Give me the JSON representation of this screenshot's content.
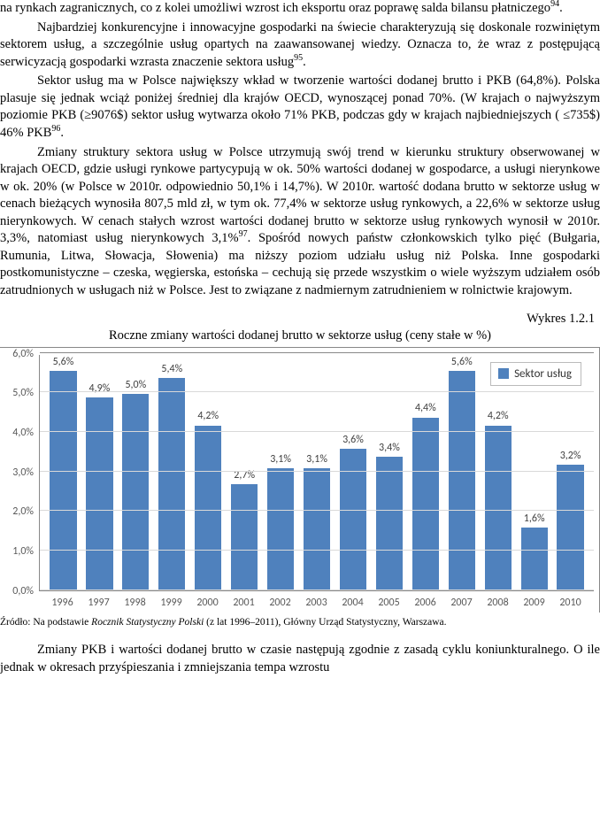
{
  "para1": {
    "pre": "na rynkach zagranicznych, co z kolei umożliwi wzrost ich eksportu oraz poprawę salda bilansu płatniczego",
    "fn": "94",
    "post": "."
  },
  "para2": {
    "pre": "Najbardziej konkurencyjne i innowacyjne gospodarki na świecie charakteryzują się doskonale rozwiniętym sektorem usług, a szczególnie usług opartych na zaawansowanej wiedzy. Oznacza to, że wraz z postępującą serwicyzacją gospodarki wzrasta znaczenie sektora usług",
    "fn": "95",
    "post": "."
  },
  "para3": {
    "pre": "Sektor usług ma w Polsce największy wkład w tworzenie wartości dodanej brutto i PKB (64,8%). Polska plasuje się jednak wciąż poniżej średniej dla krajów OECD, wynoszącej ponad 70%. (W krajach o najwyższym poziomie PKB (≥9076$) sektor usług wytwarza około 71% PKB, podczas gdy w krajach najbiedniejszych ( ≤735$) 46% PKB",
    "fn": "96",
    "post": "."
  },
  "para4": {
    "pre": "Zmiany struktury sektora usług w Polsce utrzymują swój trend w kierunku struktury obserwowanej w krajach OECD, gdzie usługi rynkowe partycypują w ok. 50% wartości dodanej w gospodarce, a usługi nierynkowe w ok. 20% (w Polsce w 2010r. odpowiednio 50,1% i 14,7%). W 2010r. wartość dodana brutto w sektorze usług w cenach bieżących wynosiła 807,5 mld zł, w tym ok. 77,4% w sektorze usług rynkowych, a 22,6% w sektorze usług nierynkowych. W cenach stałych wzrost wartości dodanej brutto w sektorze usług rynkowych wynosił w 2010r. 3,3%, natomiast usług nierynkowych 3,1%",
    "fn": "97",
    "post": ". Spośród nowych państw członkowskich tylko pięć (Bułgaria, Rumunia, Litwa, Słowacja, Słowenia) ma niższy poziom udziału usług niż Polska. Inne gospodarki postkomunistyczne – czeska, węgierska, estońska – cechują się przede wszystkim o wiele wyższym udziałem osób zatrudnionych w usługach niż w Polsce. Jest to związane z nadmiernym zatrudnieniem w rolnictwie krajowym."
  },
  "chart": {
    "numberLabel": "Wykres 1.2.1",
    "title": "Roczne zmiany wartości dodanej brutto w sektorze usług (ceny stałe w %)",
    "legend": "Sektor usług",
    "bar_color": "#4f81bd",
    "grid_color": "#d9d9d9",
    "axis_color": "#888888",
    "ymin": 0.0,
    "ymax": 6.0,
    "ystep": 1.0,
    "yticks": [
      "0,0%",
      "1,0%",
      "2,0%",
      "3,0%",
      "4,0%",
      "5,0%",
      "6,0%"
    ],
    "categories": [
      "1996",
      "1997",
      "1998",
      "1999",
      "2000",
      "2001",
      "2002",
      "2003",
      "2004",
      "2005",
      "2006",
      "2007",
      "2008",
      "2009",
      "2010"
    ],
    "values": [
      5.6,
      4.9,
      5.0,
      5.4,
      4.2,
      2.7,
      3.1,
      3.1,
      3.6,
      3.4,
      4.4,
      5.6,
      4.2,
      1.6,
      3.2
    ],
    "labels": [
      "5,6%",
      "4,9%",
      "5,0%",
      "5,4%",
      "4,2%",
      "2,7%",
      "3,1%",
      "3,1%",
      "3,6%",
      "3,4%",
      "4,4%",
      "5,6%",
      "4,2%",
      "1,6%",
      "3,2%"
    ]
  },
  "source": {
    "prefix": "Źródło: Na podstawie ",
    "italic": "Rocznik Statystyczny Polski",
    "suffix": " (z lat 1996–2011), Główny Urząd Statystyczny, Warszawa."
  },
  "para5": "Zmiany PKB i wartości dodanej brutto w czasie następują zgodnie z zasadą cyklu koniunkturalnego. O ile jednak w okresach przyśpieszania i zmniejszania tempa wzrostu"
}
